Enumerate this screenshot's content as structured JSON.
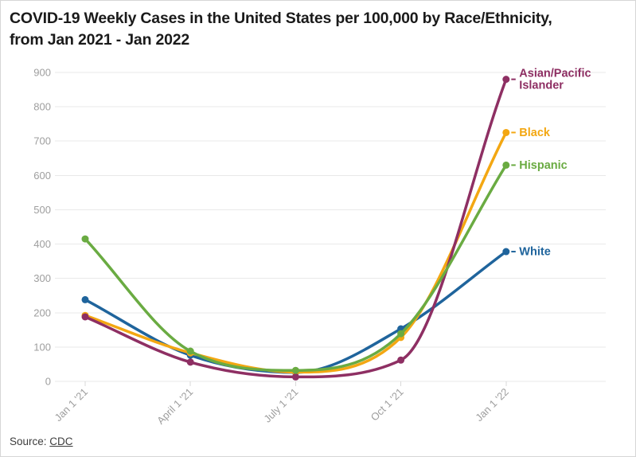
{
  "header": {
    "title_line1": "COVID-19 Weekly Cases in the United States per 100,000 by Race/Ethnicity,",
    "title_line2": "from Jan 2021 - Jan 2022"
  },
  "footer": {
    "source_label": "Source:",
    "source_link_text": "CDC"
  },
  "chart_data": {
    "type": "line",
    "title": "COVID-19 Weekly Cases in the United States per 100,000 by Race/Ethnicity, from Jan 2021 - Jan 2022",
    "x_categories": [
      "Jan 1 '21",
      "April 1 '21",
      "July 1 '21",
      "Oct 1 '21",
      "Jan 1 '22"
    ],
    "series": [
      {
        "name": "Asian/Pacific Islander",
        "label_lines": [
          "Asian/Pacific",
          "Islander"
        ],
        "color": "#8e2f63",
        "values": [
          188,
          56,
          13,
          62,
          880
        ]
      },
      {
        "name": "Black",
        "label_lines": [
          "Black"
        ],
        "color": "#f3a712",
        "values": [
          192,
          83,
          27,
          128,
          725
        ]
      },
      {
        "name": "Hispanic",
        "label_lines": [
          "Hispanic"
        ],
        "color": "#6aab42",
        "values": [
          415,
          88,
          32,
          139,
          630
        ]
      },
      {
        "name": "White",
        "label_lines": [
          "White"
        ],
        "color": "#1f649c",
        "values": [
          238,
          76,
          26,
          153,
          378
        ]
      }
    ],
    "draw_order": [
      "White",
      "Black",
      "Asian/Pacific Islander",
      "Hispanic"
    ],
    "ylim": [
      0,
      900
    ],
    "ytick_step": 100,
    "xlabel": "",
    "ylabel": "",
    "grid": "horizontal",
    "legend_position": "line-end-labels",
    "styles": {
      "grid_color": "#e9e9e9",
      "tick_color": "#d9d9d9",
      "axis_text_color": "#9e9e9e",
      "background": "#ffffff",
      "border_color": "#d6d6d6"
    }
  }
}
